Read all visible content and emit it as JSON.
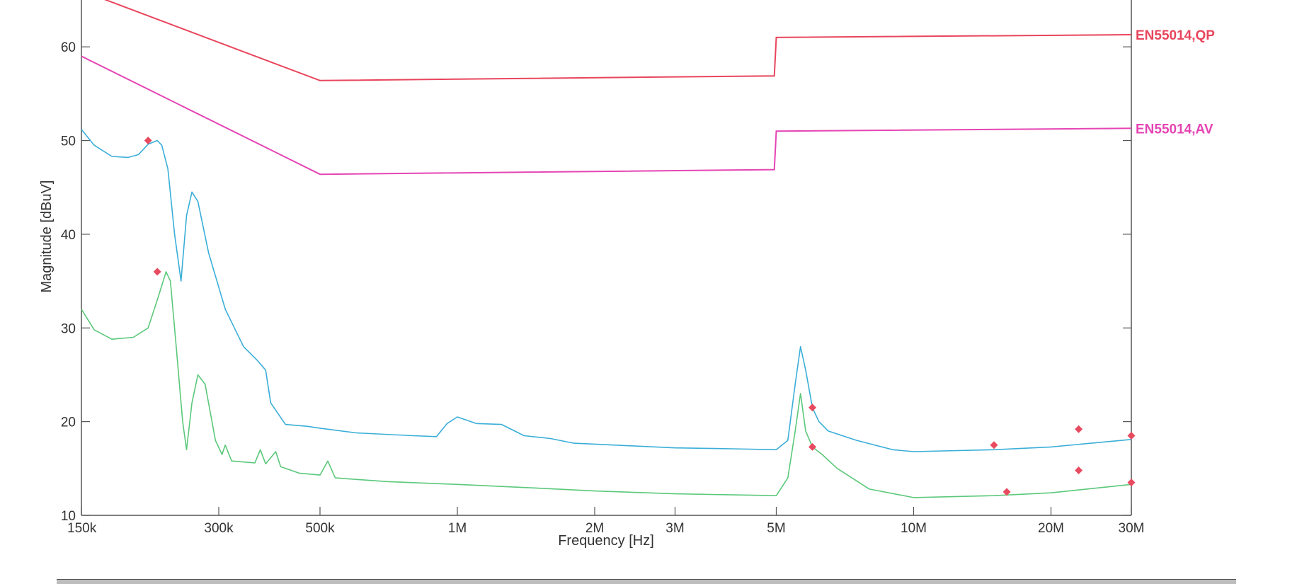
{
  "chart_data": {
    "type": "line",
    "title": "",
    "xlabel": "Frequency [Hz]",
    "ylabel": "Magnitude [dBuV]",
    "xscale": "log",
    "xlim": [
      150000,
      30000000
    ],
    "ylim": [
      10,
      65
    ],
    "grid": false,
    "x_ticks": [
      {
        "value": 150000,
        "label": "150k"
      },
      {
        "value": 300000,
        "label": "300k"
      },
      {
        "value": 500000,
        "label": "500k"
      },
      {
        "value": 1000000,
        "label": "1M"
      },
      {
        "value": 2000000,
        "label": "2M"
      },
      {
        "value": 3000000,
        "label": "3M"
      },
      {
        "value": 5000000,
        "label": "5M"
      },
      {
        "value": 10000000,
        "label": "10M"
      },
      {
        "value": 20000000,
        "label": "20M"
      },
      {
        "value": 30000000,
        "label": "30M"
      }
    ],
    "y_ticks": [
      {
        "value": 10,
        "label": "10"
      },
      {
        "value": 20,
        "label": "20"
      },
      {
        "value": 30,
        "label": "30"
      },
      {
        "value": 40,
        "label": "40"
      },
      {
        "value": 50,
        "label": "50"
      },
      {
        "value": 60,
        "label": "60"
      }
    ],
    "limits": [
      {
        "name": "EN55014,QP",
        "color": "#e8455c",
        "points": [
          [
            150000,
            66
          ],
          [
            500000,
            56.4
          ],
          [
            4950000,
            56.9
          ],
          [
            5000000,
            61
          ],
          [
            30000000,
            61.3
          ]
        ]
      },
      {
        "name": "EN55014,AV",
        "color": "#e545b4",
        "points": [
          [
            150000,
            59
          ],
          [
            500000,
            46.4
          ],
          [
            4950000,
            46.9
          ],
          [
            5000000,
            51
          ],
          [
            30000000,
            51.3
          ]
        ]
      }
    ],
    "series": [
      {
        "color": "#3aaed8",
        "points": [
          [
            150000,
            51.2
          ],
          [
            160000,
            49.5
          ],
          [
            175000,
            48.3
          ],
          [
            190000,
            48.2
          ],
          [
            200000,
            48.5
          ],
          [
            210000,
            49.6
          ],
          [
            220000,
            50
          ],
          [
            225000,
            49.5
          ],
          [
            232000,
            47
          ],
          [
            240000,
            40
          ],
          [
            248000,
            35
          ],
          [
            255000,
            42
          ],
          [
            262000,
            44.5
          ],
          [
            270000,
            43.5
          ],
          [
            285000,
            38
          ],
          [
            310000,
            32
          ],
          [
            340000,
            28
          ],
          [
            365000,
            26.5
          ],
          [
            380000,
            25.5
          ],
          [
            390000,
            22
          ],
          [
            420000,
            19.7
          ],
          [
            470000,
            19.5
          ],
          [
            500000,
            19.3
          ],
          [
            600000,
            18.8
          ],
          [
            800000,
            18.5
          ],
          [
            900000,
            18.4
          ],
          [
            950000,
            19.8
          ],
          [
            1000000,
            20.5
          ],
          [
            1100000,
            19.8
          ],
          [
            1250000,
            19.7
          ],
          [
            1400000,
            18.5
          ],
          [
            1600000,
            18.2
          ],
          [
            1800000,
            17.7
          ],
          [
            2200000,
            17.5
          ],
          [
            3000000,
            17.2
          ],
          [
            4000000,
            17.1
          ],
          [
            5000000,
            17
          ],
          [
            5300000,
            18
          ],
          [
            5500000,
            24
          ],
          [
            5650000,
            28
          ],
          [
            5800000,
            25.5
          ],
          [
            6000000,
            21.5
          ],
          [
            6200000,
            20
          ],
          [
            6500000,
            19
          ],
          [
            7500000,
            18
          ],
          [
            9000000,
            17
          ],
          [
            10000000,
            16.8
          ],
          [
            15000000,
            17
          ],
          [
            20000000,
            17.3
          ],
          [
            30000000,
            18.1
          ]
        ]
      },
      {
        "color": "#5bc87a",
        "points": [
          [
            150000,
            32
          ],
          [
            160000,
            29.8
          ],
          [
            175000,
            28.8
          ],
          [
            195000,
            29
          ],
          [
            210000,
            30
          ],
          [
            220000,
            33
          ],
          [
            230000,
            36
          ],
          [
            235000,
            35
          ],
          [
            242000,
            28
          ],
          [
            250000,
            20
          ],
          [
            255000,
            17
          ],
          [
            262000,
            22
          ],
          [
            270000,
            25
          ],
          [
            280000,
            24
          ],
          [
            295000,
            18
          ],
          [
            305000,
            16.5
          ],
          [
            310000,
            17.5
          ],
          [
            320000,
            15.8
          ],
          [
            360000,
            15.6
          ],
          [
            370000,
            17
          ],
          [
            380000,
            15.5
          ],
          [
            400000,
            16.8
          ],
          [
            410000,
            15.2
          ],
          [
            450000,
            14.5
          ],
          [
            500000,
            14.3
          ],
          [
            520000,
            15.8
          ],
          [
            540000,
            14
          ],
          [
            700000,
            13.6
          ],
          [
            1000000,
            13.3
          ],
          [
            1500000,
            12.9
          ],
          [
            2000000,
            12.6
          ],
          [
            3000000,
            12.3
          ],
          [
            5000000,
            12.1
          ],
          [
            5300000,
            14
          ],
          [
            5500000,
            19
          ],
          [
            5650000,
            23
          ],
          [
            5800000,
            19
          ],
          [
            6000000,
            17.3
          ],
          [
            6300000,
            16.5
          ],
          [
            6800000,
            15
          ],
          [
            8000000,
            12.8
          ],
          [
            10000000,
            11.9
          ],
          [
            15000000,
            12.1
          ],
          [
            20000000,
            12.4
          ],
          [
            30000000,
            13.3
          ]
        ]
      }
    ],
    "markers": [
      {
        "x": 210000,
        "y": 50
      },
      {
        "x": 220000,
        "y": 36
      },
      {
        "x": 6000000,
        "y": 21.5
      },
      {
        "x": 6000000,
        "y": 17.3
      },
      {
        "x": 15000000,
        "y": 17.5
      },
      {
        "x": 16000000,
        "y": 12.5
      },
      {
        "x": 23000000,
        "y": 19.2
      },
      {
        "x": 23000000,
        "y": 14.8
      },
      {
        "x": 30000000,
        "y": 18.5
      },
      {
        "x": 30000000,
        "y": 13.5
      }
    ],
    "marker_color": "#e84a5f"
  }
}
